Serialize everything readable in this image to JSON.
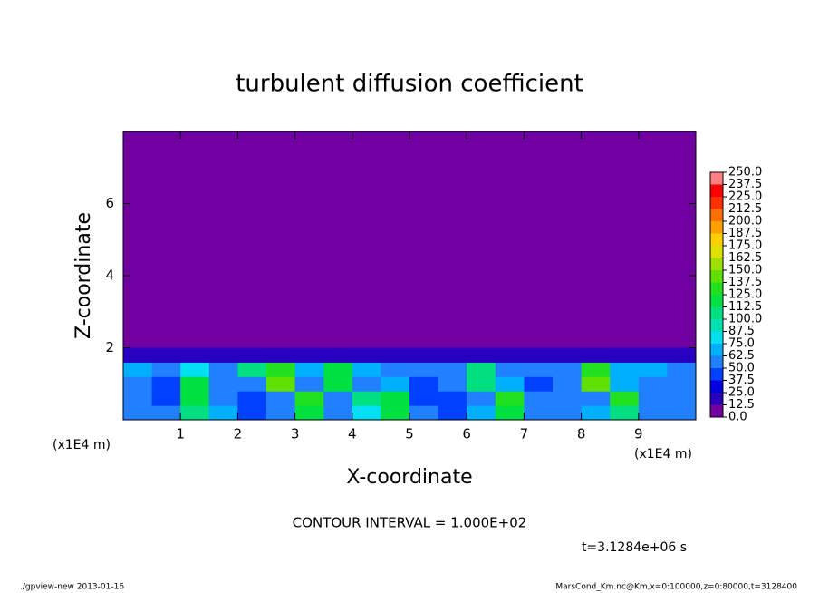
{
  "chart_data": {
    "type": "contour",
    "title": "turbulent diffusion coefficient",
    "x_label": "X-coordinate",
    "y_label": "Z-coordinate",
    "x_unit": "(x1E4 m)",
    "x_unit_right": "(x1E4 m)",
    "annotation": "CONTOUR INTERVAL = 1.000E+02",
    "time_label": "t=3.1284e+06 s",
    "footer_left": "./gpview-new  2013-01-16",
    "footer_right": "MarsCond_Km.nc@Km,x=0:100000,z=0:80000,t=3128400",
    "xlim": [
      0,
      10
    ],
    "ylim": [
      0,
      8
    ],
    "xticks": [
      1,
      2,
      3,
      4,
      5,
      6,
      7,
      8,
      9
    ],
    "yticks": [
      2,
      4,
      6
    ],
    "x": [
      0.25,
      0.75,
      1.25,
      1.75,
      2.25,
      2.75,
      3.25,
      3.75,
      4.25,
      4.75,
      5.25,
      5.75,
      6.25,
      6.75,
      7.25,
      7.75,
      8.25,
      8.75,
      9.25,
      9.75
    ],
    "y": [
      0.2,
      0.6,
      1.0,
      1.4,
      1.8
    ],
    "values": [
      [
        60,
        50,
        110,
        70,
        45,
        50,
        115,
        60,
        80,
        120,
        50,
        45,
        70,
        120,
        60,
        55,
        70,
        110,
        60,
        55
      ],
      [
        55,
        40,
        120,
        60,
        40,
        50,
        125,
        55,
        110,
        115,
        45,
        40,
        60,
        125,
        50,
        50,
        60,
        130,
        55,
        60
      ],
      [
        60,
        45,
        115,
        50,
        60,
        140,
        60,
        120,
        60,
        70,
        40,
        55,
        100,
        65,
        45,
        55,
        140,
        70,
        60,
        55
      ],
      [
        70,
        60,
        80,
        60,
        100,
        130,
        70,
        115,
        70,
        60,
        55,
        60,
        110,
        60,
        55,
        60,
        130,
        70,
        65,
        60
      ],
      [
        20,
        15,
        15,
        15,
        15,
        15,
        15,
        15,
        15,
        15,
        15,
        15,
        15,
        15,
        15,
        15,
        15,
        15,
        15,
        15
      ]
    ],
    "levels": [
      {
        "value": 0,
        "label": "0.0"
      },
      {
        "value": 12.5,
        "label": "12.5"
      },
      {
        "value": 25,
        "label": "25.0"
      },
      {
        "value": 37.5,
        "label": "37.5"
      },
      {
        "value": 50,
        "label": "50.0"
      },
      {
        "value": 62.5,
        "label": "62.5"
      },
      {
        "value": 75,
        "label": "75.0"
      },
      {
        "value": 87.5,
        "label": "87.5"
      },
      {
        "value": 100,
        "label": "100.0"
      },
      {
        "value": 112.5,
        "label": "112.5"
      },
      {
        "value": 125,
        "label": "125.0"
      },
      {
        "value": 137.5,
        "label": "137.5"
      },
      {
        "value": 150,
        "label": "150.0"
      },
      {
        "value": 162.5,
        "label": "162.5"
      },
      {
        "value": 175,
        "label": "175.0"
      },
      {
        "value": 187.5,
        "label": "187.5"
      },
      {
        "value": 200,
        "label": "200.0"
      },
      {
        "value": 212.5,
        "label": "212.5"
      },
      {
        "value": 225,
        "label": "225.0"
      },
      {
        "value": 237.5,
        "label": "237.5"
      },
      {
        "value": 250,
        "label": "250.0"
      }
    ],
    "colors": [
      "#7000a0",
      "#2800c0",
      "#0000e0",
      "#0040ff",
      "#2080ff",
      "#00b0ff",
      "#00e0f0",
      "#00e0b0",
      "#00e080",
      "#00e040",
      "#20e020",
      "#60e000",
      "#a0e000",
      "#e0e000",
      "#ffd000",
      "#ffa000",
      "#ff7000",
      "#ff3000",
      "#ff0000",
      "#ff8080"
    ]
  }
}
